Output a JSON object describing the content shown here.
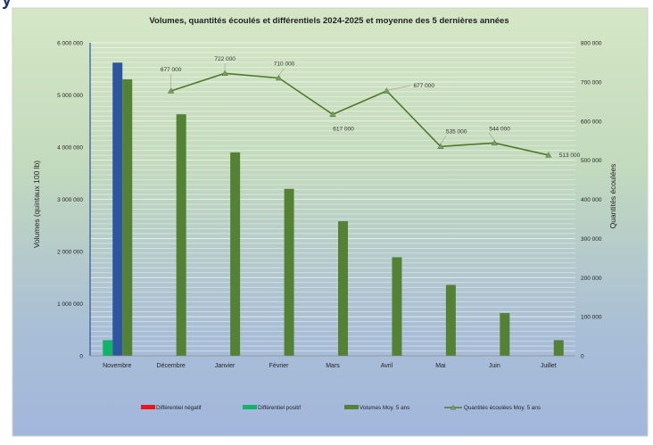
{
  "header_fragment": "y",
  "chart_data": {
    "type": "bar",
    "title": "Volumes, quantités écoulés et différentiels 2024-2025 et moyenne des 5 dernières années",
    "ylabel_left": "Volumes (quintaux 100 lb)",
    "ylabel_right": "Quantités écoulées",
    "categories": [
      "Novembre",
      "Décembre",
      "Janvier",
      "Février",
      "Mars",
      "Avril",
      "Mai",
      "Juin",
      "Juillet"
    ],
    "ylim_left": [
      0,
      6000000
    ],
    "yticks_left": [
      "0",
      "1 000 000",
      "2 000 000",
      "3 000 000",
      "4 000 000",
      "5 000 000",
      "6 000 000"
    ],
    "ylim_right": [
      0,
      800000
    ],
    "yticks_right": [
      "0",
      "100 000",
      "200 000",
      "300 000",
      "400 000",
      "500 000",
      "600 000",
      "700 000",
      "800 000"
    ],
    "grid": true,
    "legend_position": "bottom",
    "series": [
      {
        "name": "Différentiel négatif",
        "kind": "bar",
        "axis": "left",
        "color": "#e8161d",
        "values": [
          0,
          null,
          null,
          null,
          null,
          null,
          null,
          null,
          null
        ]
      },
      {
        "name": "Différentiel positif",
        "kind": "bar",
        "axis": "left",
        "color": "#14b36b",
        "values": [
          300000,
          null,
          null,
          null,
          null,
          null,
          null,
          null,
          null
        ]
      },
      {
        "name": "",
        "kind": "bar",
        "axis": "left",
        "color": "#2e55a0",
        "values": [
          5620000,
          null,
          null,
          null,
          null,
          null,
          null,
          null,
          null
        ]
      },
      {
        "name": "Volumes Moy. 5 ans",
        "kind": "bar",
        "axis": "left",
        "color": "#548235",
        "values": [
          5300000,
          4630000,
          3900000,
          3200000,
          2580000,
          1890000,
          1360000,
          820000,
          300000
        ]
      },
      {
        "name": "Quantités écoulées Moy. 5 ans",
        "kind": "line",
        "axis": "right",
        "color": "#4f7a2d",
        "values": [
          null,
          677000,
          722000,
          710000,
          617000,
          677000,
          535000,
          544000,
          513000
        ],
        "labels": [
          null,
          "677 000",
          "722 000",
          "710 000",
          "617 000",
          "677 000",
          "535 000",
          "544 000",
          "513 000"
        ]
      }
    ]
  }
}
